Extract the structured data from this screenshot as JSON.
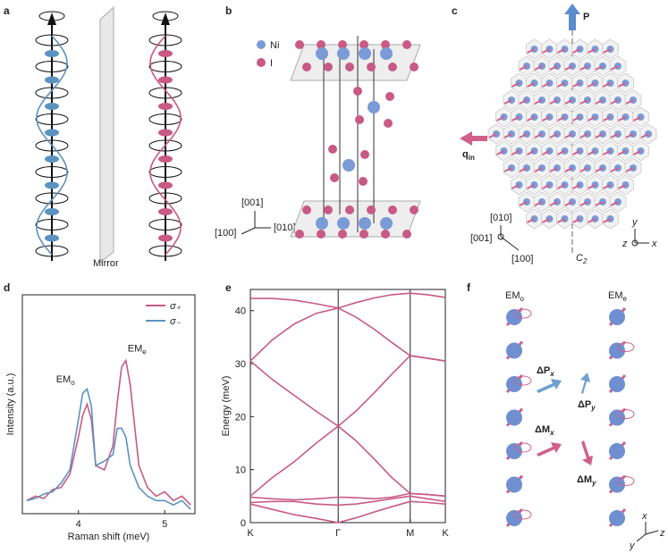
{
  "panel_labels": [
    "a",
    "b",
    "c",
    "d",
    "e",
    "f"
  ],
  "panel_a": {
    "mirror": "Mirror"
  },
  "panel_b": {
    "legend": [
      "Ni",
      "I"
    ],
    "axes": [
      "[001]",
      "[100]",
      "[010]"
    ]
  },
  "panel_c": {
    "polarization": "P",
    "wavevector": {
      "text": "q",
      "sub": "in"
    },
    "axes": [
      "[010]",
      "[001]",
      "[100]"
    ],
    "symmetry": {
      "text": "C",
      "sub": "2"
    },
    "frame": [
      "y",
      "z",
      "x"
    ]
  },
  "panel_f": {
    "modes": [
      {
        "text": "EM",
        "sub": "o"
      },
      {
        "text": "EM",
        "sub": "e"
      }
    ],
    "quantities": [
      {
        "text": "ΔP",
        "sub": "x"
      },
      {
        "text": "ΔM",
        "sub": "x"
      },
      {
        "text": "ΔP",
        "sub": "y"
      },
      {
        "text": "ΔM",
        "sub": "y"
      }
    ],
    "frame": [
      "x",
      "y",
      "z"
    ]
  },
  "chart_data": [
    {
      "type": "line",
      "xlabel": "Raman shift (meV)",
      "ylabel": "Intensity (a.u.)",
      "x": [
        3.4,
        3.5,
        3.6,
        3.7,
        3.8,
        3.9,
        4.0,
        4.05,
        4.1,
        4.15,
        4.2,
        4.3,
        4.4,
        4.45,
        4.5,
        4.55,
        4.6,
        4.7,
        4.8,
        4.9,
        5.0,
        5.1,
        5.2,
        5.3
      ],
      "series": [
        {
          "name": "σ₊",
          "color": "#c85a84",
          "values": [
            0.06,
            0.08,
            0.07,
            0.11,
            0.12,
            0.18,
            0.35,
            0.45,
            0.5,
            0.43,
            0.22,
            0.2,
            0.31,
            0.51,
            0.67,
            0.7,
            0.59,
            0.22,
            0.12,
            0.08,
            0.1,
            0.06,
            0.08,
            0.04
          ]
        },
        {
          "name": "σ₋",
          "color": "#5b93c0",
          "values": [
            0.06,
            0.07,
            0.09,
            0.1,
            0.14,
            0.2,
            0.43,
            0.55,
            0.57,
            0.49,
            0.22,
            0.24,
            0.27,
            0.39,
            0.39,
            0.35,
            0.22,
            0.12,
            0.08,
            0.06,
            0.06,
            0.04,
            0.06,
            0.02
          ]
        }
      ],
      "annotations": [
        {
          "text": "EM",
          "sub": "o"
        },
        {
          "text": "EM",
          "sub": "e"
        }
      ],
      "xlim": [
        3.35,
        5.35
      ],
      "xticks": [
        4,
        5
      ],
      "ylim": [
        0,
        1
      ],
      "legend": "upper right"
    },
    {
      "type": "line",
      "ylabel": "Energy (meV)",
      "color": "#c85a84",
      "x": [
        0,
        0.25,
        0.5,
        0.75,
        1,
        1.2,
        1.41,
        1.61,
        1.82,
        2.02,
        2.22
      ],
      "series": [
        {
          "values": [
            42.3,
            42.3,
            42.0,
            41.3,
            40.5,
            41.5,
            42.4,
            43.0,
            43.3,
            43.0,
            42.5
          ]
        },
        {
          "values": [
            30.5,
            34.5,
            37.5,
            39.5,
            40.5,
            38.8,
            36.5,
            34,
            31.5,
            31,
            30.5
          ]
        },
        {
          "values": [
            30.5,
            27,
            24,
            21,
            18.2,
            21,
            24.5,
            28,
            31.5,
            31,
            30.5
          ]
        },
        {
          "values": [
            5,
            8.5,
            11.5,
            15,
            18.2,
            15.5,
            12,
            8.5,
            5.5,
            5.3,
            5
          ]
        },
        {
          "values": [
            4.8,
            4.5,
            4.3,
            4.5,
            4.8,
            4.7,
            4.5,
            4.8,
            5.5,
            5.3,
            5.0
          ]
        },
        {
          "values": [
            3.8,
            4.0,
            4.0,
            3.5,
            3.3,
            3.5,
            4.0,
            4.5,
            5.0,
            4.5,
            4.0
          ]
        },
        {
          "values": [
            3.5,
            2.5,
            1.5,
            0.8,
            0,
            0.9,
            2,
            3,
            4,
            3.8,
            3.5
          ]
        }
      ],
      "xlim": [
        0,
        2.22
      ],
      "xticks": [
        {
          "value": 0,
          "label": "K"
        },
        {
          "value": 1,
          "label": "Γ"
        },
        {
          "value": 1.82,
          "label": "M"
        },
        {
          "value": 2.22,
          "label": "K"
        }
      ],
      "ylim": [
        0,
        44
      ],
      "yticks": [
        0,
        10,
        20,
        30,
        40
      ],
      "vlines": true
    }
  ]
}
